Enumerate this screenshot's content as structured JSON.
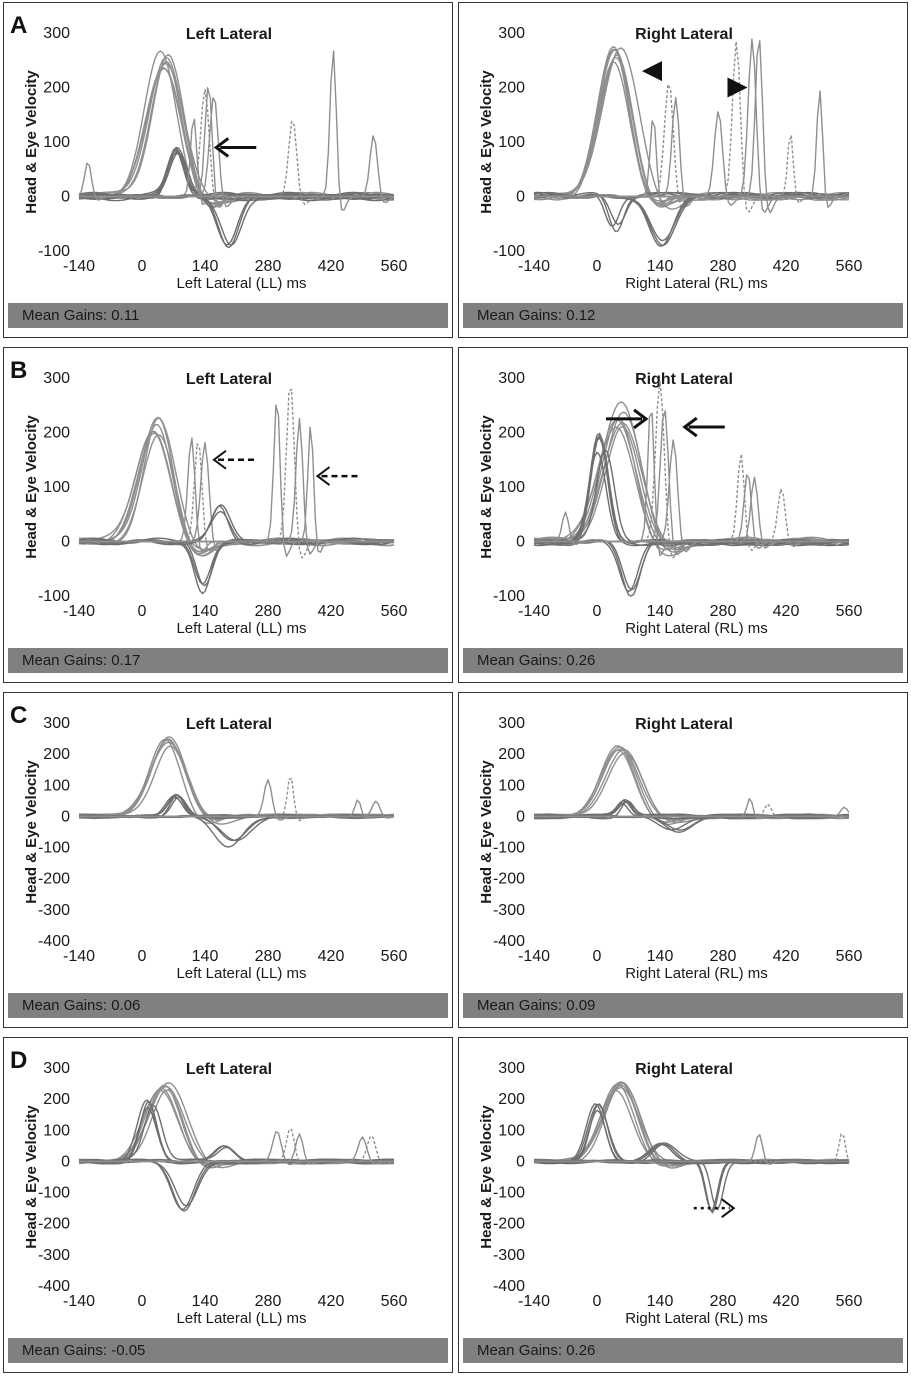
{
  "figure": {
    "row_labels": [
      "A",
      "B",
      "C",
      "D"
    ]
  },
  "chart_data": [
    {
      "id": "A-left",
      "row": "A",
      "type": "line",
      "title": "Left Lateral",
      "xlabel": "Left Lateral (LL) ms",
      "ylabel": "Head & Eye Velocity",
      "xticks": [
        -140,
        0,
        140,
        280,
        420,
        560
      ],
      "yticks": [
        300,
        200,
        100,
        0,
        -100
      ],
      "xlim": [
        -140,
        560
      ],
      "ylim": [
        -100,
        300
      ],
      "mean_gains": "Mean Gains: 0.11",
      "series": [
        {
          "name": "head impulses",
          "kind": "head",
          "count": 7,
          "peak_x": 50,
          "peak_y": 260,
          "width": 75
        },
        {
          "name": "eye velocity",
          "kind": "eye",
          "count": 7,
          "peak_x": 80,
          "peak_y": 90,
          "width": 38
        },
        {
          "name": "covert saccades",
          "kind": "saccade",
          "peaks": [
            [
              115,
              150
            ],
            [
              140,
              200
            ],
            [
              148,
              210
            ],
            [
              160,
              190
            ]
          ]
        },
        {
          "name": "post-impulse dip",
          "kind": "dip",
          "peak_x": 190,
          "peak_y": -100,
          "width": 50
        },
        {
          "name": "late saccades",
          "kind": "saccade",
          "peaks": [
            [
              -120,
              65
            ],
            [
              335,
              145
            ],
            [
              425,
              275
            ],
            [
              515,
              115
            ]
          ]
        }
      ],
      "annotations": [
        {
          "type": "arrow-solid",
          "direction": "left",
          "x": 165,
          "y": 90
        }
      ]
    },
    {
      "id": "A-right",
      "row": "A",
      "type": "line",
      "title": "Right Lateral",
      "xlabel": "Right Lateral (RL) ms",
      "ylabel": "Head & Eye Velocity",
      "xticks": [
        -140,
        0,
        140,
        280,
        420,
        560
      ],
      "yticks": [
        300,
        200,
        100,
        0,
        -100
      ],
      "xlim": [
        -140,
        560
      ],
      "ylim": [
        -100,
        300
      ],
      "mean_gains": "Mean Gains: 0.12",
      "series": [
        {
          "name": "head impulses",
          "kind": "head",
          "count": 7,
          "peak_x": 45,
          "peak_y": 275,
          "width": 75
        },
        {
          "name": "eye velocity",
          "kind": "eye",
          "count": 3,
          "peak_x": 40,
          "peak_y": -65,
          "width": 35
        },
        {
          "name": "covert saccades",
          "kind": "saccade",
          "peaks": [
            [
              125,
              150
            ],
            [
              160,
              215
            ],
            [
              175,
              185
            ]
          ]
        },
        {
          "name": "post-impulse dip",
          "kind": "dip",
          "peak_x": 150,
          "peak_y": -100,
          "width": 60
        },
        {
          "name": "overt saccades",
          "kind": "saccade",
          "peaks": [
            [
              270,
              160
            ],
            [
              310,
              290
            ],
            [
              345,
              295
            ],
            [
              360,
              300
            ],
            [
              430,
              120
            ],
            [
              495,
              200
            ]
          ]
        }
      ],
      "annotations": [
        {
          "type": "arrowhead",
          "direction": "left",
          "x": 100,
          "y": 230
        },
        {
          "type": "arrowhead",
          "direction": "right",
          "x": 290,
          "y": 200
        }
      ]
    },
    {
      "id": "B-left",
      "row": "B",
      "type": "line",
      "title": "Left Lateral",
      "xlabel": "Left Lateral (LL) ms",
      "ylabel": "Head & Eye Velocity",
      "xticks": [
        -140,
        0,
        140,
        280,
        420,
        560
      ],
      "yticks": [
        300,
        200,
        100,
        0,
        -100
      ],
      "xlim": [
        -140,
        560
      ],
      "ylim": [
        -100,
        300
      ],
      "mean_gains": "Mean Gains: 0.17",
      "series": [
        {
          "name": "head impulses",
          "kind": "head",
          "count": 7,
          "peak_x": 30,
          "peak_y": 225,
          "width": 70
        },
        {
          "name": "covert saccades",
          "kind": "saccade",
          "peaks": [
            [
              110,
              195
            ],
            [
              125,
              190
            ],
            [
              140,
              185
            ]
          ]
        },
        {
          "name": "post-impulse dip",
          "kind": "dip",
          "peak_x": 135,
          "peak_y": -100,
          "width": 40
        },
        {
          "name": "rebound",
          "kind": "eye",
          "count": 3,
          "peak_x": 175,
          "peak_y": 65,
          "width": 40
        },
        {
          "name": "late saccades",
          "kind": "saccade",
          "peaks": [
            [
              300,
              270
            ],
            [
              330,
              300
            ],
            [
              350,
              230
            ],
            [
              375,
              220
            ]
          ]
        }
      ],
      "annotations": [
        {
          "type": "arrow-dashed",
          "direction": "left",
          "x": 160,
          "y": 150
        },
        {
          "type": "arrow-dashed",
          "direction": "left",
          "x": 390,
          "y": 120
        }
      ]
    },
    {
      "id": "B-right",
      "row": "B",
      "type": "line",
      "title": "Right Lateral",
      "xlabel": "Right Lateral (RL) ms",
      "ylabel": "Head & Eye Velocity",
      "xticks": [
        -140,
        0,
        140,
        280,
        420,
        560
      ],
      "yticks": [
        300,
        200,
        100,
        0,
        -100
      ],
      "xlim": [
        -140,
        560
      ],
      "ylim": [
        -100,
        300
      ],
      "mean_gains": "Mean Gains: 0.26",
      "series": [
        {
          "name": "head impulses",
          "kind": "head",
          "count": 7,
          "peak_x": 50,
          "peak_y": 255,
          "width": 80
        },
        {
          "name": "eye velocity",
          "kind": "eye",
          "count": 5,
          "peak_x": 10,
          "peak_y": 200,
          "width": 40
        },
        {
          "name": "covert saccades",
          "kind": "saccade",
          "peaks": [
            [
              120,
              260
            ],
            [
              140,
              300
            ],
            [
              150,
              250
            ],
            [
              170,
              190
            ]
          ]
        },
        {
          "name": "post-impulse dip",
          "kind": "dip",
          "peak_x": 70,
          "peak_y": -100,
          "width": 45
        },
        {
          "name": "late saccades",
          "kind": "saccade",
          "peaks": [
            [
              -70,
              55
            ],
            [
              320,
              165
            ],
            [
              335,
              130
            ],
            [
              350,
              120
            ],
            [
              410,
              100
            ]
          ]
        }
      ],
      "annotations": [
        {
          "type": "arrow-solid",
          "direction": "right",
          "x": 20,
          "y": 225
        },
        {
          "type": "arrow-solid",
          "direction": "left",
          "x": 195,
          "y": 210
        }
      ]
    },
    {
      "id": "C-left",
      "row": "C",
      "type": "line",
      "title": "Left Lateral",
      "xlabel": "Left Lateral (LL) ms",
      "ylabel": "Head & Eye Velocity",
      "xticks": [
        -140,
        0,
        140,
        280,
        420,
        560
      ],
      "yticks": [
        300,
        200,
        100,
        0,
        -100,
        -200,
        -300,
        -400
      ],
      "xlim": [
        -140,
        560
      ],
      "ylim": [
        -400,
        300
      ],
      "mean_gains": "Mean Gains: 0.06",
      "series": [
        {
          "name": "head impulses",
          "kind": "head",
          "count": 6,
          "peak_x": 55,
          "peak_y": 250,
          "width": 75
        },
        {
          "name": "eye velocity",
          "kind": "eye",
          "count": 5,
          "peak_x": 75,
          "peak_y": 70,
          "width": 35
        },
        {
          "name": "post-impulse dip",
          "kind": "dip",
          "peak_x": 200,
          "peak_y": -100,
          "width": 70
        },
        {
          "name": "late saccades",
          "kind": "saccade",
          "peaks": [
            [
              280,
              120
            ],
            [
              330,
              135
            ],
            [
              480,
              55
            ],
            [
              520,
              50
            ]
          ]
        }
      ],
      "annotations": []
    },
    {
      "id": "C-right",
      "row": "C",
      "type": "line",
      "title": "Right Lateral",
      "xlabel": "Right Lateral (RL) ms",
      "ylabel": "Head & Eye Velocity",
      "xticks": [
        -140,
        0,
        140,
        280,
        420,
        560
      ],
      "yticks": [
        300,
        200,
        100,
        0,
        -100,
        -200,
        -300,
        -400
      ],
      "xlim": [
        -140,
        560
      ],
      "ylim": [
        -400,
        300
      ],
      "mean_gains": "Mean Gains: 0.09",
      "series": [
        {
          "name": "head impulses",
          "kind": "head",
          "count": 6,
          "peak_x": 55,
          "peak_y": 230,
          "width": 75
        },
        {
          "name": "eye velocity",
          "kind": "eye",
          "count": 5,
          "peak_x": 60,
          "peak_y": 50,
          "width": 30
        },
        {
          "name": "post-impulse dip",
          "kind": "dip",
          "peak_x": 175,
          "peak_y": -50,
          "width": 70
        },
        {
          "name": "late saccades",
          "kind": "saccade",
          "peaks": [
            [
              340,
              60
            ],
            [
              380,
              40
            ],
            [
              550,
              30
            ]
          ]
        }
      ],
      "annotations": []
    },
    {
      "id": "D-left",
      "row": "D",
      "type": "line",
      "title": "Left Lateral",
      "xlabel": "Left Lateral (LL) ms",
      "ylabel": "Head & Eye Velocity",
      "xticks": [
        -140,
        0,
        140,
        280,
        420,
        560
      ],
      "yticks": [
        300,
        200,
        100,
        0,
        -100,
        -200,
        -300,
        -400
      ],
      "xlim": [
        -140,
        560
      ],
      "ylim": [
        -400,
        300
      ],
      "mean_gains": "Mean Gains: -0.05",
      "series": [
        {
          "name": "head impulses",
          "kind": "head",
          "count": 6,
          "peak_x": 50,
          "peak_y": 260,
          "width": 75
        },
        {
          "name": "eye velocity",
          "kind": "eye",
          "count": 4,
          "peak_x": 20,
          "peak_y": 200,
          "width": 40
        },
        {
          "name": "post-impulse dip",
          "kind": "dip",
          "peak_x": 100,
          "peak_y": -160,
          "width": 55
        },
        {
          "name": "rebound",
          "kind": "eye",
          "count": 3,
          "peak_x": 190,
          "peak_y": 50,
          "width": 40
        },
        {
          "name": "late saccades",
          "kind": "saccade",
          "peaks": [
            [
              300,
              100
            ],
            [
              330,
              110
            ],
            [
              350,
              90
            ],
            [
              490,
              80
            ],
            [
              510,
              85
            ]
          ]
        }
      ],
      "annotations": []
    },
    {
      "id": "D-right",
      "row": "D",
      "type": "line",
      "title": "Right Lateral",
      "xlabel": "Right Lateral (RL) ms",
      "ylabel": "Head & Eye Velocity",
      "xticks": [
        -140,
        0,
        140,
        280,
        420,
        560
      ],
      "yticks": [
        300,
        200,
        100,
        0,
        -100,
        -200,
        -300,
        -400
      ],
      "xlim": [
        -140,
        560
      ],
      "ylim": [
        -400,
        300
      ],
      "mean_gains": "Mean Gains: 0.26",
      "series": [
        {
          "name": "head impulses",
          "kind": "head",
          "count": 7,
          "peak_x": 50,
          "peak_y": 260,
          "width": 75
        },
        {
          "name": "eye velocity",
          "kind": "eye",
          "count": 4,
          "peak_x": 0,
          "peak_y": 190,
          "width": 40
        },
        {
          "name": "rebound",
          "kind": "eye",
          "count": 4,
          "peak_x": 150,
          "peak_y": 60,
          "width": 50
        },
        {
          "name": "post-impulse dip",
          "kind": "dip",
          "peak_x": 260,
          "peak_y": -200,
          "width": 30
        },
        {
          "name": "late saccades",
          "kind": "saccade",
          "peaks": [
            [
              360,
              90
            ],
            [
              545,
              95
            ]
          ]
        }
      ],
      "annotations": [
        {
          "type": "arrow-dotted",
          "direction": "right",
          "x": 215,
          "y": -150
        }
      ]
    }
  ]
}
